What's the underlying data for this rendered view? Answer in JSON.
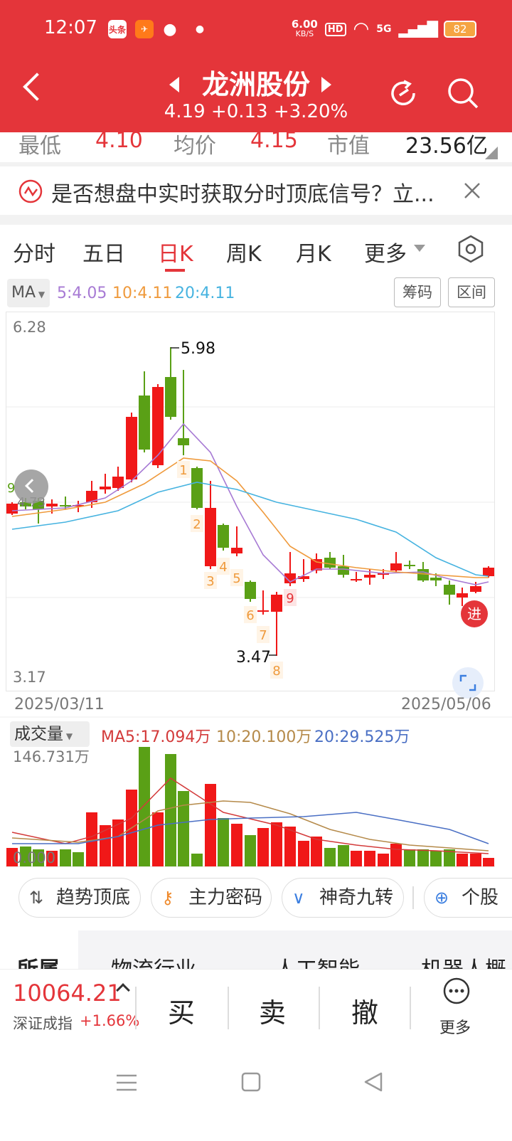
{
  "status": {
    "time": "12:07",
    "app_icon_1": "头条",
    "net_speed": "6.00",
    "net_unit": "KB/S",
    "hd": "HD",
    "signal": "5G",
    "battery": "82"
  },
  "header": {
    "stock_name": "龙洲股份",
    "price_line": "4.19 +0.13 +3.20%"
  },
  "stats": {
    "low_label": "最低",
    "low_value": "4.10",
    "avg_label": "均价",
    "avg_value": "4.15",
    "cap_label": "市值",
    "cap_value": "23.56亿"
  },
  "notice": {
    "text": "是否想盘中实时获取分时顶底信号？立..."
  },
  "tabs": {
    "fenshi": "分时",
    "wuri": "五日",
    "rik": "日K",
    "zhouk": "周K",
    "yuek": "月K",
    "more": "更多"
  },
  "ma": {
    "label": "MA",
    "ma5": "5:4.05",
    "ma10": "10:4.11",
    "ma20": "20:4.11",
    "btn_chip": "筹码",
    "btn_range": "区间"
  },
  "chart_data": {
    "type": "candlestick",
    "price_axis": {
      "max_label": "6.28",
      "min_label": "3.17"
    },
    "date_start": "2025/03/11",
    "date_end": "2025/05/06",
    "high_annotation": "5.98",
    "low_annotation": "3.47",
    "left_partial_label": "4.73",
    "left_partial_num": "9",
    "signal_badge": "进",
    "nine_turn_labels": [
      "1",
      "2",
      "3",
      "4",
      "5",
      "6",
      "7",
      "8",
      "9"
    ],
    "volume": {
      "label": "成交量",
      "ma5": "MA5:17.094万",
      "ma10": "10:20.100万",
      "ma20": "20:29.525万",
      "max_label": "146.731万",
      "min_label": "0.000"
    }
  },
  "chips": {
    "trend": "趋势顶底",
    "fund": "主力密码",
    "nine": "神奇九转",
    "stock": "个股"
  },
  "sectors": {
    "partial": "所属",
    "s1": "物流行业",
    "s2": "人工智能",
    "s3": "机器人概"
  },
  "index": {
    "value": "10064.21",
    "name": "深证成指",
    "change": "+1.66%"
  },
  "actions": {
    "buy": "买",
    "sell": "卖",
    "cancel": "撤",
    "more": "更多"
  },
  "colors": {
    "brand": "#e4353a",
    "up": "#f01818",
    "down": "#5aa016",
    "ma5": "#a77ad4",
    "ma10": "#ef9a3c",
    "ma20": "#46b3e0"
  }
}
